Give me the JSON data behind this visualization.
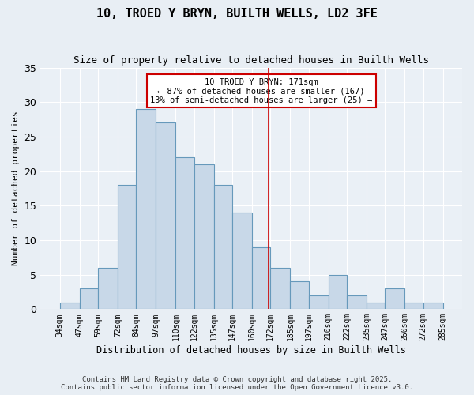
{
  "title": "10, TROED Y BRYN, BUILTH WELLS, LD2 3FE",
  "subtitle": "Size of property relative to detached houses in Builth Wells",
  "xlabel": "Distribution of detached houses by size in Builth Wells",
  "ylabel": "Number of detached properties",
  "footer_line1": "Contains HM Land Registry data © Crown copyright and database right 2025.",
  "footer_line2": "Contains public sector information licensed under the Open Government Licence v3.0.",
  "bin_labels": [
    "34sqm",
    "47sqm",
    "59sqm",
    "72sqm",
    "84sqm",
    "97sqm",
    "110sqm",
    "122sqm",
    "135sqm",
    "147sqm",
    "160sqm",
    "172sqm",
    "185sqm",
    "197sqm",
    "210sqm",
    "222sqm",
    "235sqm",
    "247sqm",
    "260sqm",
    "272sqm",
    "285sqm"
  ],
  "bar_values": [
    1,
    3,
    6,
    18,
    29,
    27,
    22,
    21,
    18,
    14,
    9,
    6,
    4,
    2,
    5,
    2,
    1,
    3,
    1,
    1
  ],
  "bar_color": "#c8d8e8",
  "bar_edge_color": "#6699bb",
  "annotation_text": "10 TROED Y BRYN: 171sqm\n← 87% of detached houses are smaller (167)\n13% of semi-detached houses are larger (25) →",
  "annotation_box_edge": "#cc0000",
  "vline_x": 171,
  "vline_color": "#cc0000",
  "ylim": [
    0,
    35
  ],
  "yticks": [
    0,
    5,
    10,
    15,
    20,
    25,
    30,
    35
  ],
  "bin_edges": [
    34,
    47,
    59,
    72,
    84,
    97,
    110,
    122,
    135,
    147,
    160,
    172,
    185,
    197,
    210,
    222,
    235,
    247,
    260,
    272,
    285
  ],
  "bg_color": "#e8eef4",
  "plot_bg_color": "#eaf0f6"
}
